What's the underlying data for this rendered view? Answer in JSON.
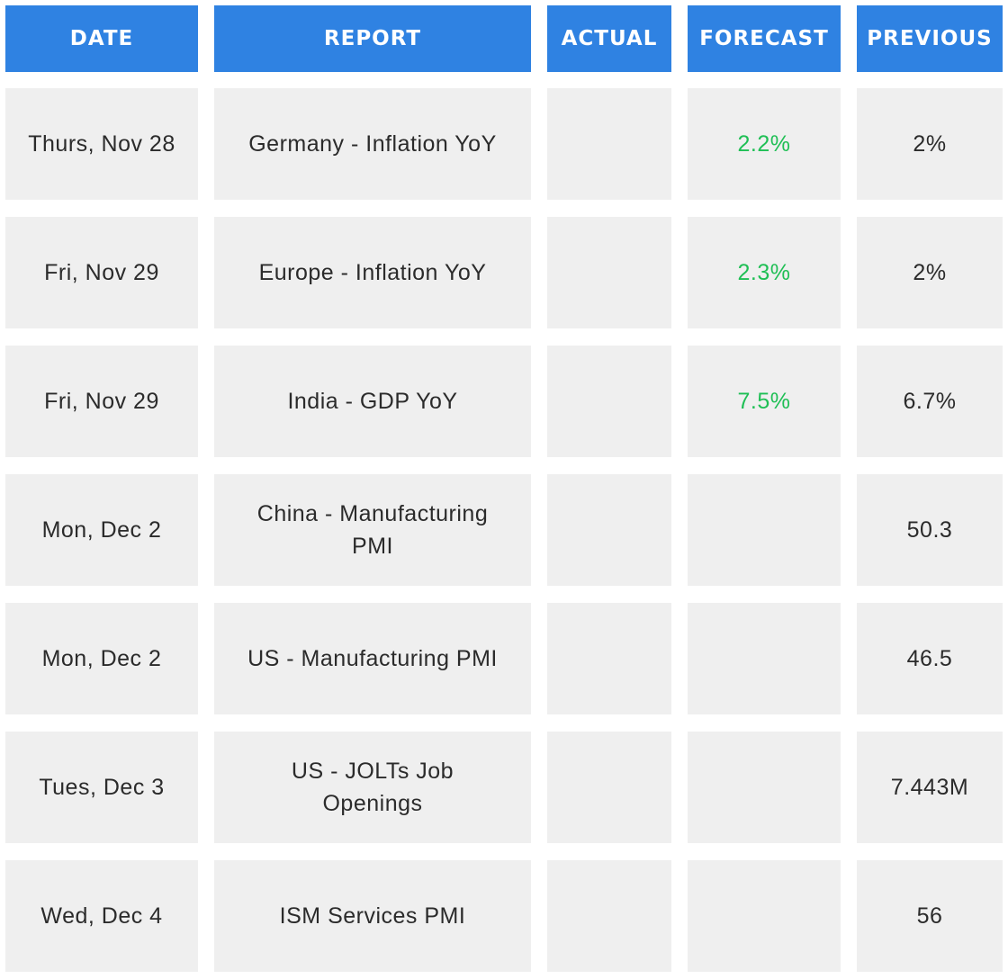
{
  "table": {
    "headers": [
      "DATE",
      "REPORT",
      "ACTUAL",
      "FORECAST",
      "PREVIOUS"
    ],
    "rows": [
      {
        "date": "Thurs, Nov 28",
        "report": [
          "Germany - Inflation YoY"
        ],
        "forecast": "2.2%",
        "previous": "2%"
      },
      {
        "date": "Fri, Nov 29",
        "report": [
          "Europe - Inflation YoY"
        ],
        "forecast": "2.3%",
        "previous": "2%"
      },
      {
        "date": "Fri, Nov 29",
        "report": [
          "India - GDP YoY"
        ],
        "forecast": "7.5%",
        "previous": "6.7%"
      },
      {
        "date": "Mon, Dec 2",
        "report": [
          "China - Manufacturing",
          "PMI"
        ],
        "previous": "50.3"
      },
      {
        "date": "Mon, Dec 2",
        "report": [
          "US - Manufacturing PMI"
        ],
        "previous": "46.5"
      },
      {
        "date": "Tues, Dec 3",
        "report": [
          "US - JOLTs Job",
          "Openings"
        ],
        "previous": "7.443M"
      },
      {
        "date": "Wed, Dec 4",
        "report": [
          "ISM Services PMI"
        ],
        "previous": "56"
      }
    ]
  }
}
